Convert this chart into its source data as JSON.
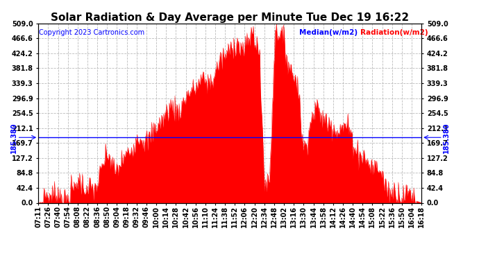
{
  "title": "Solar Radiation & Day Average per Minute Tue Dec 19 16:22",
  "copyright": "Copyright 2023 Cartronics.com",
  "median_value": 185.38,
  "median_label": "185.380",
  "legend_median": "Median(w/m2)",
  "legend_radiation": "Radiation(w/m2)",
  "ymin": 0.0,
  "ymax": 509.0,
  "yticks": [
    0.0,
    42.4,
    84.8,
    127.2,
    169.7,
    212.1,
    254.5,
    296.9,
    339.3,
    381.8,
    424.2,
    466.6,
    509.0
  ],
  "background_color": "#ffffff",
  "fill_color": "#ff0000",
  "line_color": "#ff0000",
  "median_color": "#0000ff",
  "grid_color": "#bbbbbb",
  "title_color": "#000000",
  "title_fontsize": 11,
  "copyright_fontsize": 7,
  "tick_fontsize": 7,
  "xtick_labels": [
    "07:11",
    "07:26",
    "07:40",
    "07:54",
    "08:08",
    "08:22",
    "08:36",
    "08:50",
    "09:04",
    "09:18",
    "09:32",
    "09:46",
    "10:00",
    "10:14",
    "10:28",
    "10:42",
    "10:56",
    "11:10",
    "11:24",
    "11:38",
    "11:52",
    "12:06",
    "12:20",
    "12:34",
    "12:48",
    "13:02",
    "13:16",
    "13:30",
    "13:44",
    "13:58",
    "14:12",
    "14:26",
    "14:40",
    "14:54",
    "15:08",
    "15:22",
    "15:36",
    "15:50",
    "16:04",
    "16:18"
  ]
}
